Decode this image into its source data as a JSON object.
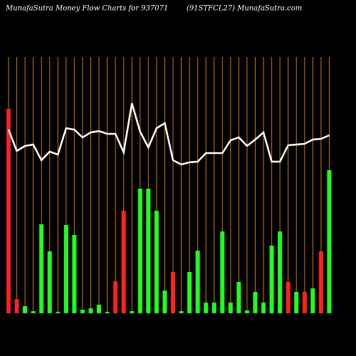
{
  "chart_data": {
    "type": "bar-line",
    "title": "MunafaSutra  Money Flow  Charts for 937071",
    "subtitle": "(91STFCL27) MunafaSutra.com",
    "ylim": [
      0,
      360
    ],
    "grid_color": "#c87814",
    "line_color": "#ffffff",
    "bars": {
      "values": [
        287,
        20,
        10,
        3,
        125,
        87,
        2,
        124,
        110,
        5,
        7,
        12,
        2,
        45,
        144,
        3,
        175,
        175,
        144,
        32,
        58,
        3,
        58,
        88,
        15,
        15,
        115,
        15,
        44,
        4,
        30,
        15,
        95,
        115,
        44,
        30,
        30,
        35,
        87,
        201
      ],
      "colors": [
        "#ff2020",
        "#ff2020",
        "#20ff20",
        "#20ff20",
        "#20ff20",
        "#20ff20",
        "#20ff20",
        "#20ff20",
        "#20ff20",
        "#20ff20",
        "#20ff20",
        "#20ff20",
        "#20ff20",
        "#ff2020",
        "#ff2020",
        "#20ff20",
        "#20ff20",
        "#20ff20",
        "#20ff20",
        "#20ff20",
        "#ff2020",
        "#20ff20",
        "#20ff20",
        "#20ff20",
        "#20ff20",
        "#20ff20",
        "#20ff20",
        "#20ff20",
        "#20ff20",
        "#20ff20",
        "#20ff20",
        "#20ff20",
        "#20ff20",
        "#20ff20",
        "#ff2020",
        "#20ff20",
        "#ff2020",
        "#20ff20",
        "#ff2020",
        "#20ff20"
      ]
    },
    "line": {
      "values": [
        258,
        228,
        235,
        237,
        215,
        227,
        223,
        260,
        258,
        247,
        254,
        256,
        252,
        252,
        226,
        295,
        255,
        233,
        260,
        267,
        215,
        209,
        212,
        213,
        225,
        225,
        225,
        243,
        247,
        235,
        244,
        254,
        213,
        213,
        236,
        237,
        238,
        244,
        245,
        250
      ]
    }
  }
}
